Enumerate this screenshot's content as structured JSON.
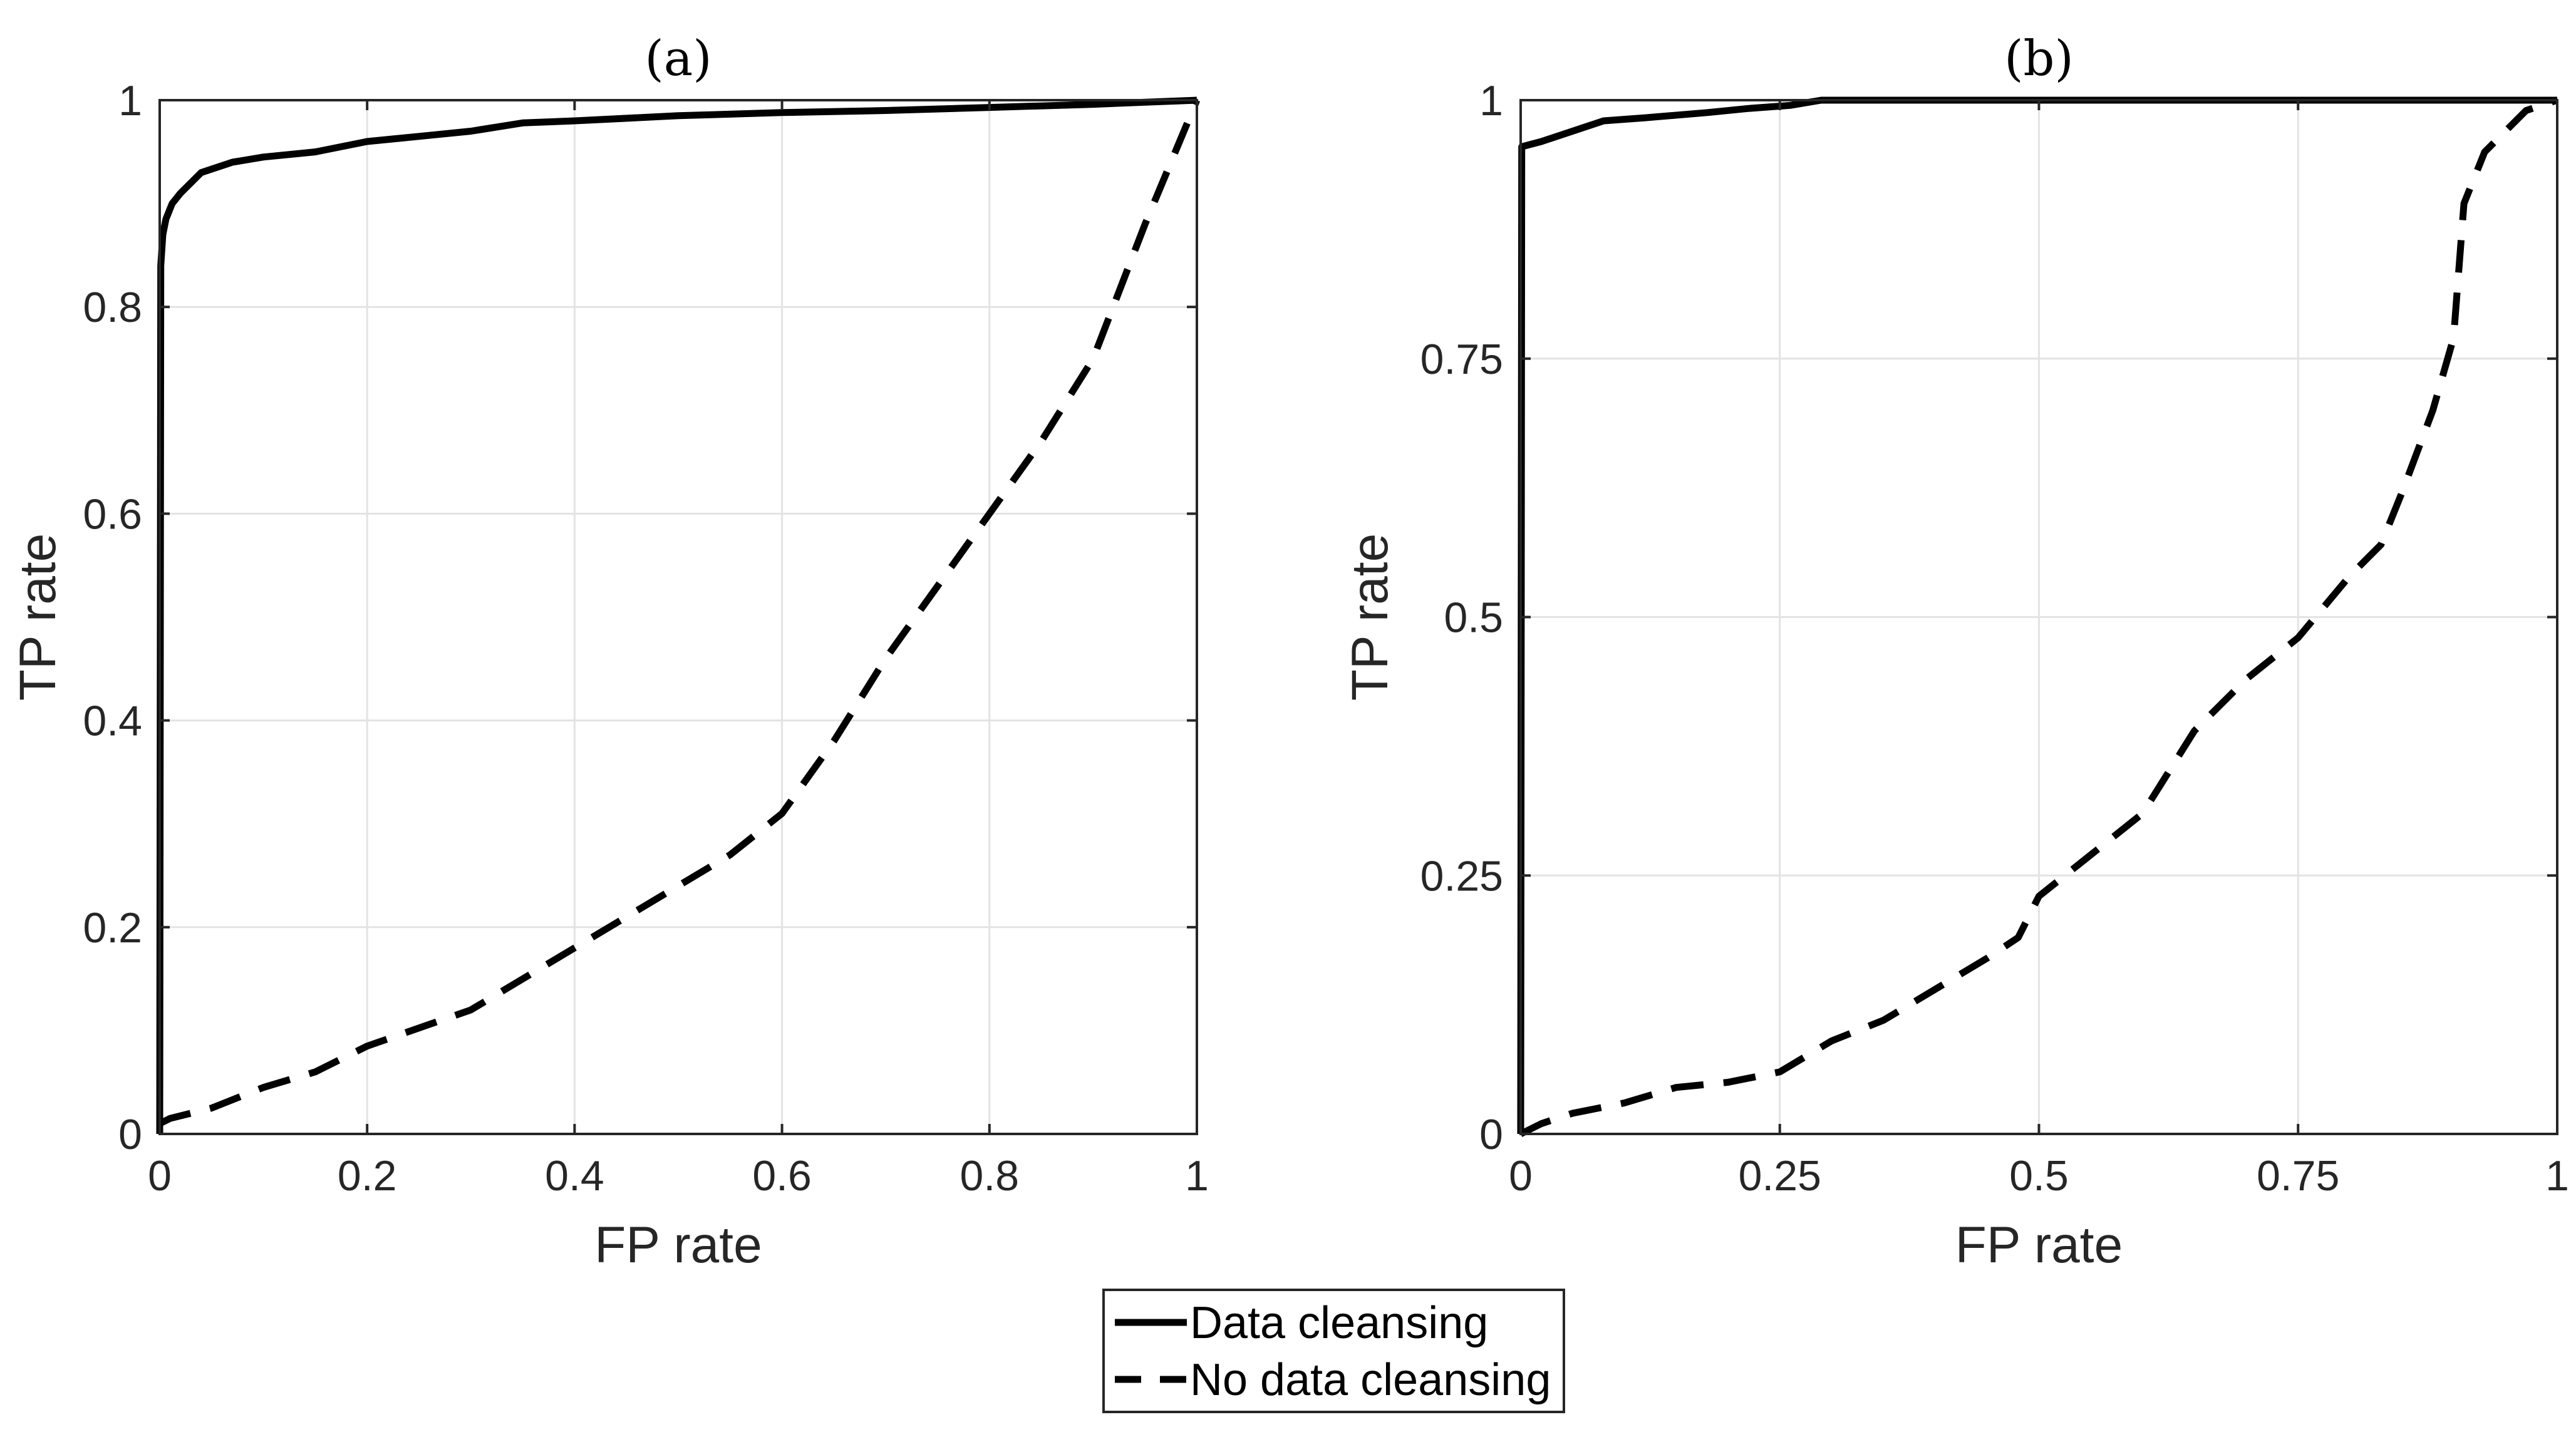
{
  "chart_data": [
    {
      "type": "line",
      "title": "(a)",
      "xlabel": "FP rate",
      "ylabel": "TP rate",
      "xlim": [
        0,
        1
      ],
      "ylim": [
        0,
        1
      ],
      "xticks": [
        0,
        0.2,
        0.4,
        0.6,
        0.8,
        1
      ],
      "yticks": [
        0,
        0.2,
        0.4,
        0.6,
        0.8,
        1
      ],
      "xtick_labels": [
        "0",
        "0.2",
        "0.4",
        "0.6",
        "0.8",
        "1"
      ],
      "ytick_labels": [
        "0",
        "0.2",
        "0.4",
        "0.6",
        "0.8",
        "1"
      ],
      "grid": true,
      "series": [
        {
          "name": "Data cleansing",
          "style": "solid",
          "x": [
            0,
            0.001,
            0.003,
            0.006,
            0.012,
            0.02,
            0.04,
            0.07,
            0.1,
            0.15,
            0.2,
            0.25,
            0.3,
            0.35,
            0.4,
            0.5,
            0.6,
            0.7,
            0.8,
            0.9,
            0.95,
            1.0
          ],
          "y": [
            0,
            0.84,
            0.87,
            0.885,
            0.9,
            0.91,
            0.93,
            0.94,
            0.945,
            0.95,
            0.96,
            0.965,
            0.97,
            0.978,
            0.98,
            0.985,
            0.988,
            0.99,
            0.993,
            0.996,
            0.998,
            1.0
          ]
        },
        {
          "name": "No data cleansing",
          "style": "dashed",
          "x": [
            0,
            0.01,
            0.05,
            0.1,
            0.15,
            0.2,
            0.3,
            0.4,
            0.45,
            0.5,
            0.55,
            0.6,
            0.65,
            0.7,
            0.75,
            0.8,
            0.85,
            0.9,
            0.95,
            1.0
          ],
          "y": [
            0.01,
            0.015,
            0.025,
            0.045,
            0.06,
            0.085,
            0.12,
            0.18,
            0.21,
            0.24,
            0.27,
            0.31,
            0.38,
            0.46,
            0.53,
            0.6,
            0.67,
            0.75,
            0.88,
            1.0
          ]
        }
      ]
    },
    {
      "type": "line",
      "title": "(b)",
      "xlabel": "FP rate",
      "ylabel": "TP rate",
      "xlim": [
        0,
        1
      ],
      "ylim": [
        0,
        1
      ],
      "xticks": [
        0,
        0.25,
        0.5,
        0.75,
        1
      ],
      "yticks": [
        0,
        0.25,
        0.5,
        0.75,
        1
      ],
      "xtick_labels": [
        "0",
        "0.25",
        "0.5",
        "0.75",
        "1"
      ],
      "ytick_labels": [
        "0",
        "0.25",
        "0.5",
        "0.75",
        "1"
      ],
      "grid": true,
      "series": [
        {
          "name": "Data cleansing",
          "style": "solid",
          "x": [
            0,
            0.001,
            0.02,
            0.05,
            0.08,
            0.12,
            0.18,
            0.22,
            0.26,
            0.29,
            0.32,
            0.5,
            0.75,
            1.0
          ],
          "y": [
            0,
            0.955,
            0.96,
            0.97,
            0.98,
            0.983,
            0.988,
            0.992,
            0.995,
            1.0,
            1.0,
            1.0,
            1.0,
            1.0
          ]
        },
        {
          "name": "No data cleansing",
          "style": "dashed",
          "x": [
            0,
            0.02,
            0.05,
            0.1,
            0.15,
            0.2,
            0.25,
            0.3,
            0.35,
            0.4,
            0.45,
            0.48,
            0.5,
            0.55,
            0.6,
            0.65,
            0.7,
            0.75,
            0.8,
            0.83,
            0.85,
            0.88,
            0.9,
            0.91,
            0.93,
            0.95,
            0.97,
            1.0
          ],
          "y": [
            0,
            0.01,
            0.02,
            0.03,
            0.045,
            0.05,
            0.06,
            0.09,
            0.11,
            0.14,
            0.17,
            0.19,
            0.23,
            0.27,
            0.31,
            0.39,
            0.44,
            0.48,
            0.54,
            0.57,
            0.62,
            0.7,
            0.77,
            0.9,
            0.95,
            0.97,
            0.99,
            1.0
          ]
        }
      ]
    }
  ],
  "legend": {
    "entries": [
      {
        "label": "Data cleansing",
        "style": "solid"
      },
      {
        "label": "No data cleansing",
        "style": "dashed"
      }
    ],
    "placement": "bottom-center"
  }
}
